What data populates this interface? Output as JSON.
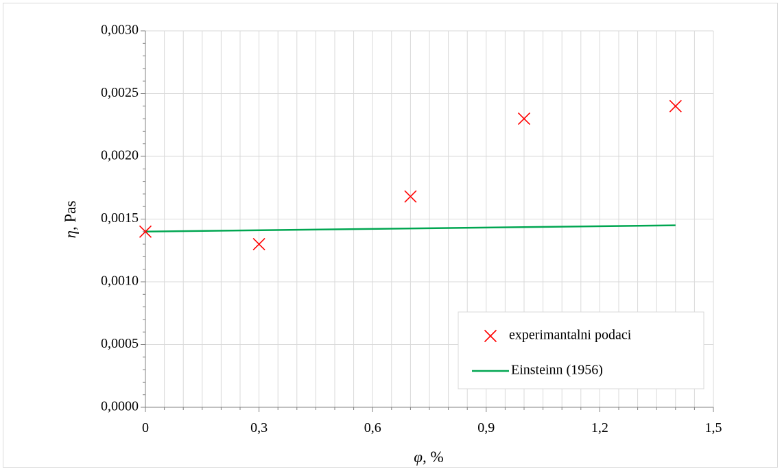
{
  "chart_data": {
    "type": "scatter",
    "xlabel_symbol": "φ",
    "xlabel_unit": ", %",
    "ylabel_symbol": "η",
    "ylabel_unit": ", Pas",
    "xlim": [
      0,
      1.5
    ],
    "ylim": [
      0,
      0.003
    ],
    "x_ticks": [
      "0",
      "0,3",
      "0,6",
      "0,9",
      "1,2",
      "1,5"
    ],
    "y_ticks": [
      "0,0000",
      "0,0005",
      "0,0010",
      "0,0015",
      "0,0020",
      "0,0025",
      "0,0030"
    ],
    "grid": true,
    "legend_position": "bottom-right",
    "series": [
      {
        "name": "experimantalni podaci",
        "kind": "scatter",
        "marker": "x",
        "color": "#ff0000",
        "x": [
          0,
          0.3,
          0.7,
          1.0,
          1.4
        ],
        "y": [
          0.0014,
          0.0013,
          0.00168,
          0.0023,
          0.0024
        ]
      },
      {
        "name": "Einsteinn (1956)",
        "kind": "line",
        "color": "#00a651",
        "x": [
          0,
          1.4
        ],
        "y": [
          0.0014,
          0.00145
        ]
      }
    ]
  }
}
